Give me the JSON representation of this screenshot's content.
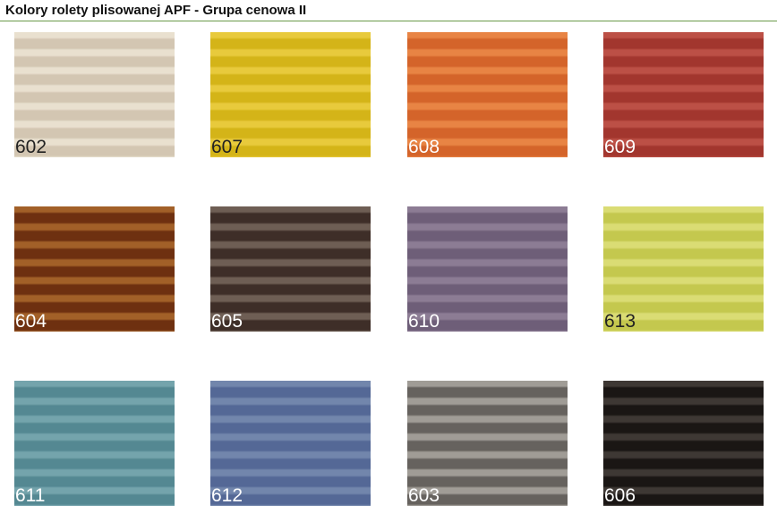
{
  "title": "Kolory rolety plisowanej APF - Grupa cenowa II",
  "accent_rule_color": "#6a9a4a",
  "swatches": [
    {
      "code": "602",
      "dark": "#d3c6b2",
      "light": "#e9e0cf",
      "label_color": "#222222"
    },
    {
      "code": "607",
      "dark": "#d4b418",
      "light": "#e8ca3c",
      "label_color": "#222222"
    },
    {
      "code": "608",
      "dark": "#d4642a",
      "light": "#e88444",
      "label_color": "#ffffff"
    },
    {
      "code": "609",
      "dark": "#a2362e",
      "light": "#bc5046",
      "label_color": "#ffffff"
    },
    {
      "code": "604",
      "dark": "#6e3010",
      "light": "#a26028",
      "label_color": "#ffffff"
    },
    {
      "code": "605",
      "dark": "#3e2e28",
      "light": "#6e5e54",
      "label_color": "#ffffff"
    },
    {
      "code": "610",
      "dark": "#6e5e78",
      "light": "#8c7c94",
      "label_color": "#ffffff"
    },
    {
      "code": "613",
      "dark": "#c4c84e",
      "light": "#dadc74",
      "label_color": "#222222"
    },
    {
      "code": "611",
      "dark": "#548892",
      "light": "#74a4ac",
      "label_color": "#ffffff"
    },
    {
      "code": "612",
      "dark": "#546896",
      "light": "#7286ac",
      "label_color": "#ffffff"
    },
    {
      "code": "603",
      "dark": "#66625e",
      "light": "#a09c96",
      "label_color": "#ffffff"
    },
    {
      "code": "606",
      "dark": "#1a1614",
      "light": "#3e3834",
      "label_color": "#ffffff"
    }
  ]
}
